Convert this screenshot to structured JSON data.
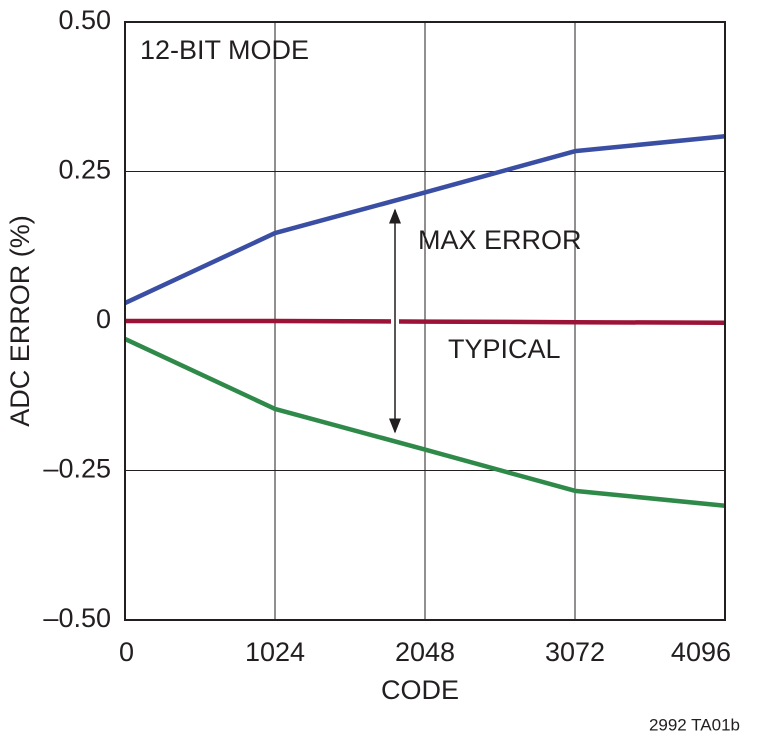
{
  "chart_data": {
    "type": "line",
    "x": [
      0,
      1024,
      2048,
      3072,
      4096
    ],
    "series": [
      {
        "color": "#3a4fa3",
        "values": [
          0.03,
          0.147,
          0.215,
          0.284,
          0.309
        ]
      },
      {
        "color": "#9b1437",
        "values": [
          0,
          0,
          -0.001,
          -0.002,
          -0.003
        ]
      },
      {
        "color": "#2f8a4a",
        "values": [
          -0.03,
          -0.147,
          -0.215,
          -0.284,
          -0.309
        ]
      }
    ],
    "xlim": [
      0,
      4096
    ],
    "xticks": [
      0,
      1024,
      2048,
      3072,
      4096
    ],
    "ylim": [
      -0.5,
      0.5
    ],
    "yticks": [
      {
        "value": -0.5,
        "label": "–0.50"
      },
      {
        "value": -0.25,
        "label": "–0.25"
      },
      0,
      {
        "value": 0.25,
        "label": "0.25"
      },
      {
        "value": 0.5,
        "label": "0.50"
      }
    ],
    "xlabel": "CODE",
    "ylabel": "ADC ERROR (%)",
    "grid": true,
    "annotations": [
      "12-BIT MODE",
      "MAX ERROR",
      "TYPICAL",
      "2992 TA01b"
    ]
  }
}
